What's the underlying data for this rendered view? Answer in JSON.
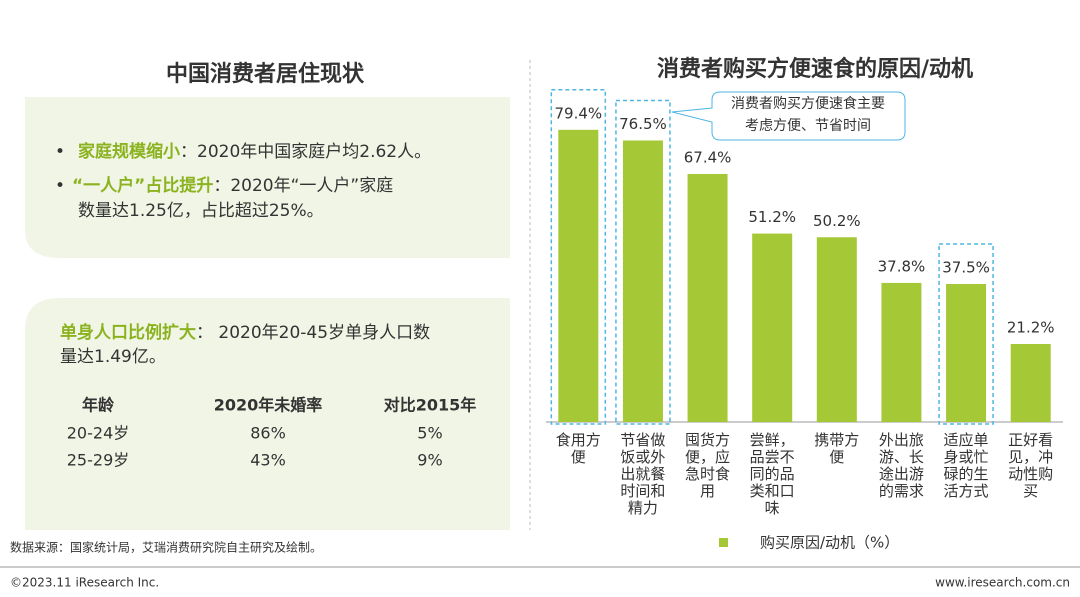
{
  "left_panel": {
    "title": "中国消费者居住现状",
    "bullets": [
      {
        "lead": "家庭规模缩小",
        "text": "：2020年中国家庭户均2.62人。"
      },
      {
        "lead": "“一人户”占比提升",
        "text": "：2020年“一人户”家庭",
        "text2": "数量达1.25亿，占比超过25%。"
      }
    ],
    "single": {
      "lead": "单身人口比例扩大",
      "text": "：  2020年20-45岁单身人口数",
      "text2": "量达1.49亿。"
    },
    "table": {
      "header": [
        "年龄",
        "2020年未婚率",
        "对比2015年"
      ],
      "rows": [
        [
          "20-24岁",
          "86%",
          "5%"
        ],
        [
          "25-29岁",
          "43%",
          "9%"
        ]
      ]
    }
  },
  "chart_data": {
    "type": "bar",
    "title": "消费者购买方便速食的原因/动机",
    "categories": [
      "食用方便",
      "节省做饭或外出就餐时间和精力",
      "囤货方便，应急时食用",
      "尝鲜，品尝不同的品类和口味",
      "携带方便",
      "外出旅游、长途出游的需求",
      "适应单身或忙碌的生活方式",
      "正好看见，冲动性购买"
    ],
    "series": [
      {
        "name": "购买原因/动机（%）",
        "color": "#a5c837",
        "values": [
          79.4,
          76.5,
          67.4,
          51.2,
          50.2,
          37.8,
          37.5,
          21.2
        ],
        "value_labels": [
          "79.4%",
          "76.5%",
          "67.4%",
          "51.2%",
          "50.2%",
          "37.8%",
          "37.5%",
          "21.2%"
        ]
      }
    ],
    "ylim": [
      0,
      100
    ],
    "annotation": [
      "消费者购买方便速食主要",
      "考虑方便、节省时间"
    ]
  },
  "footer": {
    "source": "数据来源：国家统计局，艾瑞消费研究院自主研究及绘制。",
    "copyright": "©2023.11 iResearch Inc.",
    "url": "www.iresearch.com.cn"
  }
}
